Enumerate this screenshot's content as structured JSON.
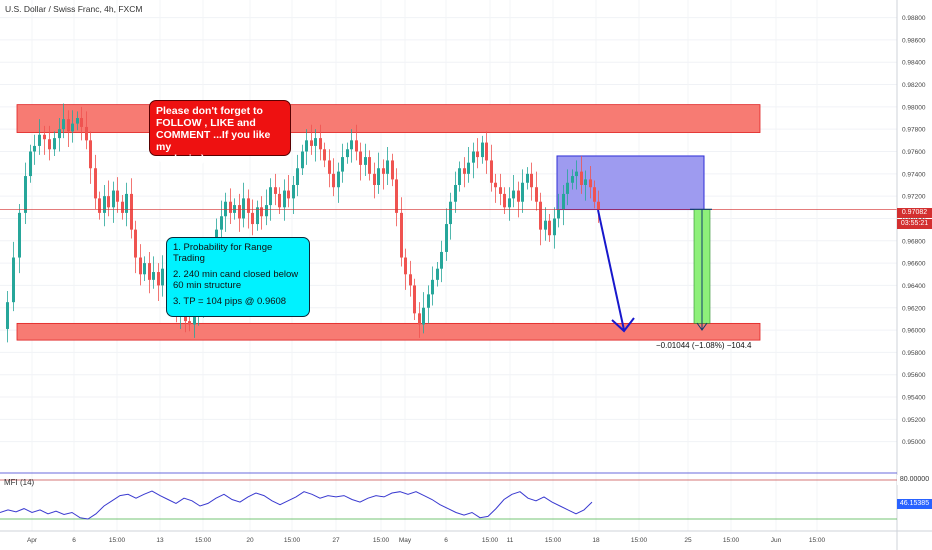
{
  "header": {
    "title": "U.S. Dollar / Swiss Franc, 4h, FXCM"
  },
  "notes": {
    "red_note": "Please don't forget  to\nFOLLOW , LIKE and\nCOMMENT ...If you like my\nanalysis:)",
    "cyan_note": {
      "line1": "1. Probability for Range Trading",
      "line2": "2. 240 min cand closed below 60 min structure",
      "line3": "3. TP  =  104 pips @ 0.9608"
    }
  },
  "measure_label": "−0.01044 (−1.08%) −104.4",
  "price_tag": {
    "price": "0.97082",
    "countdown": "03:55:21",
    "color": "#d32f2f"
  },
  "mfi": {
    "label": "MFI (14)",
    "upper": "80.00000",
    "current": "46.15385",
    "current_color": "#2962ff"
  },
  "colors": {
    "zone": "#f77b73",
    "zone_border": "#e02020",
    "entry_box": "#9e9bf0",
    "entry_border": "#2d2dd6",
    "target_bar": "#8ef07a",
    "arrow": "#1818cc",
    "candle_up": "#26a69a",
    "candle_down": "#ef5350",
    "mfi_line": "#3a3ad0",
    "mfi_upper": "#c84a4a",
    "mfi_lower": "#48b048"
  },
  "chart_data": {
    "type": "candlestick",
    "symbol": "USDCHF",
    "timeframe": "4h",
    "ylim": [
      0.948,
      0.9885
    ],
    "y_ticks": [
      "0.98800",
      "0.98600",
      "0.98400",
      "0.98200",
      "0.98000",
      "0.97800",
      "0.97600",
      "0.97400",
      "0.97200",
      "0.97000",
      "0.96800",
      "0.96600",
      "0.96400",
      "0.96200",
      "0.96000",
      "0.95800",
      "0.95600",
      "0.95400",
      "0.95200",
      "0.95000"
    ],
    "x_ticks": [
      "Apr",
      "6",
      "15:00",
      "13",
      "15:00",
      "20",
      "15:00",
      "27",
      "15:00",
      "May",
      "6",
      "15:00",
      "11",
      "15:00",
      "18",
      "15:00",
      "25",
      "15:00",
      "Jun",
      "15:00"
    ],
    "resistance_zone": [
      0.9777,
      0.9802
    ],
    "support_zone": [
      0.9591,
      0.9606
    ],
    "entry_zone": [
      0.9708,
      0.9756
    ],
    "target_price": 0.9606,
    "current_price": 0.97082,
    "close_path": [
      [
        0,
        0.9601
      ],
      [
        6,
        0.9625
      ],
      [
        12,
        0.9665
      ],
      [
        18,
        0.9705
      ],
      [
        24,
        0.9738
      ],
      [
        29,
        0.976
      ],
      [
        33,
        0.9765
      ],
      [
        38,
        0.9775
      ],
      [
        43,
        0.9771
      ],
      [
        48,
        0.9762
      ],
      [
        53,
        0.9772
      ],
      [
        58,
        0.978
      ],
      [
        62,
        0.9789
      ],
      [
        67,
        0.9778
      ],
      [
        71,
        0.9785
      ],
      [
        76,
        0.979
      ],
      [
        80,
        0.9782
      ],
      [
        85,
        0.977
      ],
      [
        89,
        0.9745
      ],
      [
        94,
        0.9718
      ],
      [
        98,
        0.9705
      ],
      [
        103,
        0.972
      ],
      [
        107,
        0.971
      ],
      [
        112,
        0.9725
      ],
      [
        116,
        0.9715
      ],
      [
        121,
        0.9705
      ],
      [
        125,
        0.9722
      ],
      [
        130,
        0.969
      ],
      [
        134,
        0.9665
      ],
      [
        139,
        0.965
      ],
      [
        143,
        0.966
      ],
      [
        148,
        0.9645
      ],
      [
        152,
        0.9652
      ],
      [
        157,
        0.964
      ],
      [
        161,
        0.9655
      ],
      [
        166,
        0.9642
      ],
      [
        170,
        0.9625
      ],
      [
        175,
        0.9615
      ],
      [
        179,
        0.962
      ],
      [
        184,
        0.9608
      ],
      [
        188,
        0.9605
      ],
      [
        193,
        0.9612
      ],
      [
        197,
        0.9625
      ],
      [
        202,
        0.964
      ],
      [
        206,
        0.9655
      ],
      [
        211,
        0.967
      ],
      [
        215,
        0.969
      ],
      [
        220,
        0.9702
      ],
      [
        224,
        0.9715
      ],
      [
        229,
        0.9705
      ],
      [
        233,
        0.9712
      ],
      [
        238,
        0.97
      ],
      [
        242,
        0.9718
      ],
      [
        247,
        0.9705
      ],
      [
        251,
        0.9695
      ],
      [
        256,
        0.971
      ],
      [
        260,
        0.9702
      ],
      [
        265,
        0.9712
      ],
      [
        269,
        0.9728
      ],
      [
        274,
        0.9722
      ],
      [
        278,
        0.971
      ],
      [
        283,
        0.9725
      ],
      [
        287,
        0.9718
      ],
      [
        292,
        0.973
      ],
      [
        296,
        0.9745
      ],
      [
        301,
        0.976
      ],
      [
        305,
        0.977
      ],
      [
        310,
        0.9765
      ],
      [
        314,
        0.9772
      ],
      [
        319,
        0.9762
      ],
      [
        323,
        0.9752
      ],
      [
        328,
        0.974
      ],
      [
        332,
        0.9728
      ],
      [
        337,
        0.9742
      ],
      [
        341,
        0.9755
      ],
      [
        346,
        0.9762
      ],
      [
        350,
        0.977
      ],
      [
        355,
        0.976
      ],
      [
        359,
        0.9748
      ],
      [
        364,
        0.9755
      ],
      [
        368,
        0.974
      ],
      [
        373,
        0.973
      ],
      [
        377,
        0.9745
      ],
      [
        382,
        0.974
      ],
      [
        386,
        0.9752
      ],
      [
        391,
        0.9735
      ],
      [
        395,
        0.9705
      ],
      [
        400,
        0.9665
      ],
      [
        404,
        0.965
      ],
      [
        409,
        0.964
      ],
      [
        413,
        0.9615
      ],
      [
        418,
        0.9605
      ],
      [
        422,
        0.962
      ],
      [
        427,
        0.9632
      ],
      [
        431,
        0.9645
      ],
      [
        436,
        0.9655
      ],
      [
        440,
        0.967
      ],
      [
        445,
        0.9695
      ],
      [
        449,
        0.9715
      ],
      [
        454,
        0.973
      ],
      [
        458,
        0.9745
      ],
      [
        463,
        0.974
      ],
      [
        467,
        0.975
      ],
      [
        472,
        0.976
      ],
      [
        476,
        0.9755
      ],
      [
        481,
        0.9768
      ],
      [
        485,
        0.9752
      ],
      [
        490,
        0.9732
      ],
      [
        494,
        0.9728
      ],
      [
        499,
        0.9722
      ],
      [
        503,
        0.971
      ],
      [
        508,
        0.9718
      ],
      [
        512,
        0.9725
      ],
      [
        517,
        0.9715
      ],
      [
        521,
        0.9732
      ],
      [
        526,
        0.974
      ],
      [
        530,
        0.9728
      ],
      [
        535,
        0.9715
      ],
      [
        539,
        0.969
      ],
      [
        544,
        0.9698
      ],
      [
        548,
        0.9685
      ],
      [
        553,
        0.97
      ],
      [
        557,
        0.9708
      ],
      [
        562,
        0.9722
      ],
      [
        566,
        0.9732
      ],
      [
        571,
        0.9738
      ],
      [
        575,
        0.9742
      ],
      [
        580,
        0.973
      ],
      [
        584,
        0.9735
      ],
      [
        589,
        0.9728
      ],
      [
        593,
        0.9715
      ],
      [
        597,
        0.9708
      ]
    ],
    "mfi_values": [
      [
        0,
        30
      ],
      [
        8,
        34
      ],
      [
        16,
        31
      ],
      [
        24,
        36
      ],
      [
        32,
        30
      ],
      [
        40,
        34
      ],
      [
        48,
        28
      ],
      [
        56,
        32
      ],
      [
        64,
        27
      ],
      [
        72,
        30
      ],
      [
        80,
        22
      ],
      [
        88,
        20
      ],
      [
        96,
        28
      ],
      [
        104,
        40
      ],
      [
        112,
        48
      ],
      [
        120,
        56
      ],
      [
        128,
        58
      ],
      [
        136,
        52
      ],
      [
        144,
        58
      ],
      [
        152,
        63
      ],
      [
        160,
        56
      ],
      [
        168,
        50
      ],
      [
        176,
        44
      ],
      [
        184,
        52
      ],
      [
        192,
        48
      ],
      [
        200,
        40
      ],
      [
        208,
        44
      ],
      [
        216,
        52
      ],
      [
        224,
        58
      ],
      [
        232,
        50
      ],
      [
        240,
        46
      ],
      [
        248,
        54
      ],
      [
        256,
        60
      ],
      [
        264,
        56
      ],
      [
        272,
        48
      ],
      [
        280,
        42
      ],
      [
        288,
        48
      ],
      [
        296,
        54
      ],
      [
        304,
        62
      ],
      [
        312,
        58
      ],
      [
        320,
        52
      ],
      [
        328,
        56
      ],
      [
        336,
        54
      ],
      [
        344,
        56
      ],
      [
        352,
        50
      ],
      [
        360,
        46
      ],
      [
        368,
        52
      ],
      [
        376,
        56
      ],
      [
        384,
        54
      ],
      [
        392,
        60
      ],
      [
        400,
        62
      ],
      [
        408,
        58
      ],
      [
        416,
        62
      ],
      [
        424,
        56
      ],
      [
        432,
        50
      ],
      [
        440,
        42
      ],
      [
        448,
        36
      ],
      [
        456,
        30
      ],
      [
        464,
        26
      ],
      [
        472,
        30
      ],
      [
        480,
        22
      ],
      [
        488,
        24
      ],
      [
        496,
        36
      ],
      [
        504,
        50
      ],
      [
        512,
        58
      ],
      [
        520,
        62
      ],
      [
        528,
        52
      ],
      [
        536,
        48
      ],
      [
        544,
        54
      ],
      [
        552,
        46
      ],
      [
        560,
        40
      ],
      [
        568,
        34
      ],
      [
        576,
        28
      ],
      [
        584,
        34
      ],
      [
        592,
        46
      ]
    ]
  }
}
